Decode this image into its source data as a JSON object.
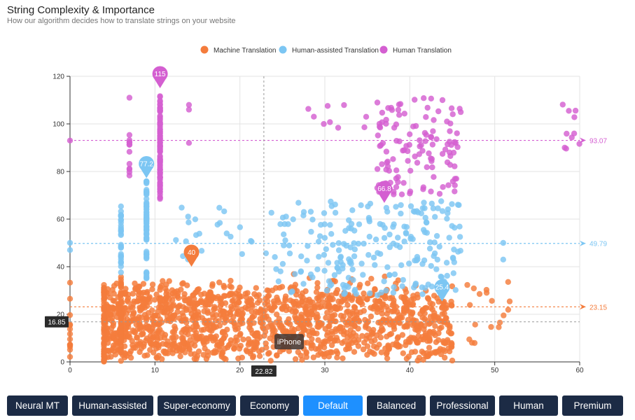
{
  "header": {
    "title": "String Complexity & Importance",
    "subtitle": "How our algorithm decides how to translate strings on your website"
  },
  "buttons": [
    {
      "label": "Neural MT",
      "active": false
    },
    {
      "label": "Human-assisted",
      "active": false
    },
    {
      "label": "Super-economy",
      "active": false
    },
    {
      "label": "Economy",
      "active": false
    },
    {
      "label": "Default",
      "active": true
    },
    {
      "label": "Balanced",
      "active": false
    },
    {
      "label": "Professional",
      "active": false
    },
    {
      "label": "Human",
      "active": false
    },
    {
      "label": "Premium",
      "active": false
    }
  ],
  "chart_data": {
    "type": "scatter",
    "title": "String Complexity & Importance",
    "xlim": [
      0,
      60
    ],
    "ylim": [
      0,
      120
    ],
    "x_ticks": [
      0,
      10,
      20,
      30,
      40,
      50,
      60
    ],
    "y_ticks": [
      0,
      20,
      40,
      60,
      80,
      100,
      120
    ],
    "grid": true,
    "legend_position": "top-center",
    "series": [
      {
        "name": "Machine Translation",
        "color": "#f47c3c",
        "threshold": 23.15,
        "marker": {
          "x": 14.3,
          "y": 40,
          "label": "40"
        }
      },
      {
        "name": "Human-assisted Translation",
        "color": "#7cc6f3",
        "threshold": 49.79,
        "marker": {
          "x": 9.0,
          "y": 77.2,
          "label": "77.2"
        },
        "marker2": {
          "x": 43.8,
          "y": 25.4,
          "label": "25.4"
        }
      },
      {
        "name": "Human Translation",
        "color": "#d45fd1",
        "threshold": 93.07,
        "marker": {
          "x": 10.6,
          "y": 115,
          "label": "115"
        },
        "marker2": {
          "x": 37.0,
          "y": 66.8,
          "label": "66.8"
        }
      }
    ],
    "crosshair": {
      "x": 22.82,
      "y": 16.85,
      "x_label": "22.82",
      "y_label": "16.85"
    },
    "tooltip": {
      "text": "iPhone",
      "x": 25.8,
      "y": 8.5
    }
  }
}
